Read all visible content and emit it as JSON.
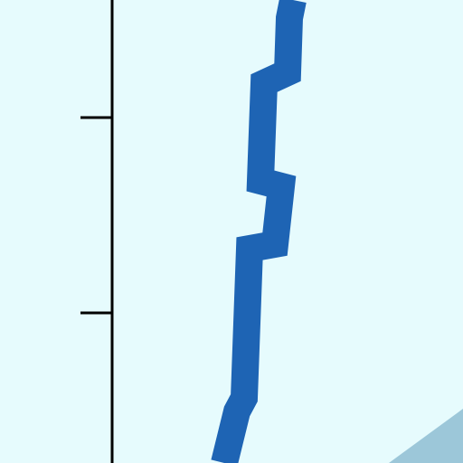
{
  "chart_data": {
    "type": "line",
    "title": "",
    "xlabel": "",
    "ylabel": "",
    "grid": false,
    "legend": "none",
    "series": [
      {
        "color": "#1e64b4",
        "points": [
          [
            324,
            0
          ],
          [
            320,
            20
          ],
          [
            318,
            80
          ],
          [
            292,
            92
          ],
          [
            288,
            200
          ],
          [
            311,
            206
          ],
          [
            304,
            270
          ],
          [
            276,
            275
          ],
          [
            270,
            440
          ],
          [
            262,
            455
          ],
          [
            248,
            512
          ]
        ]
      }
    ],
    "ticks_count": 2,
    "colors": {
      "background": "#e6fbfd",
      "axis": "#000000",
      "band": "#1e64b4",
      "corner_fill": "#9cc7d9"
    }
  }
}
